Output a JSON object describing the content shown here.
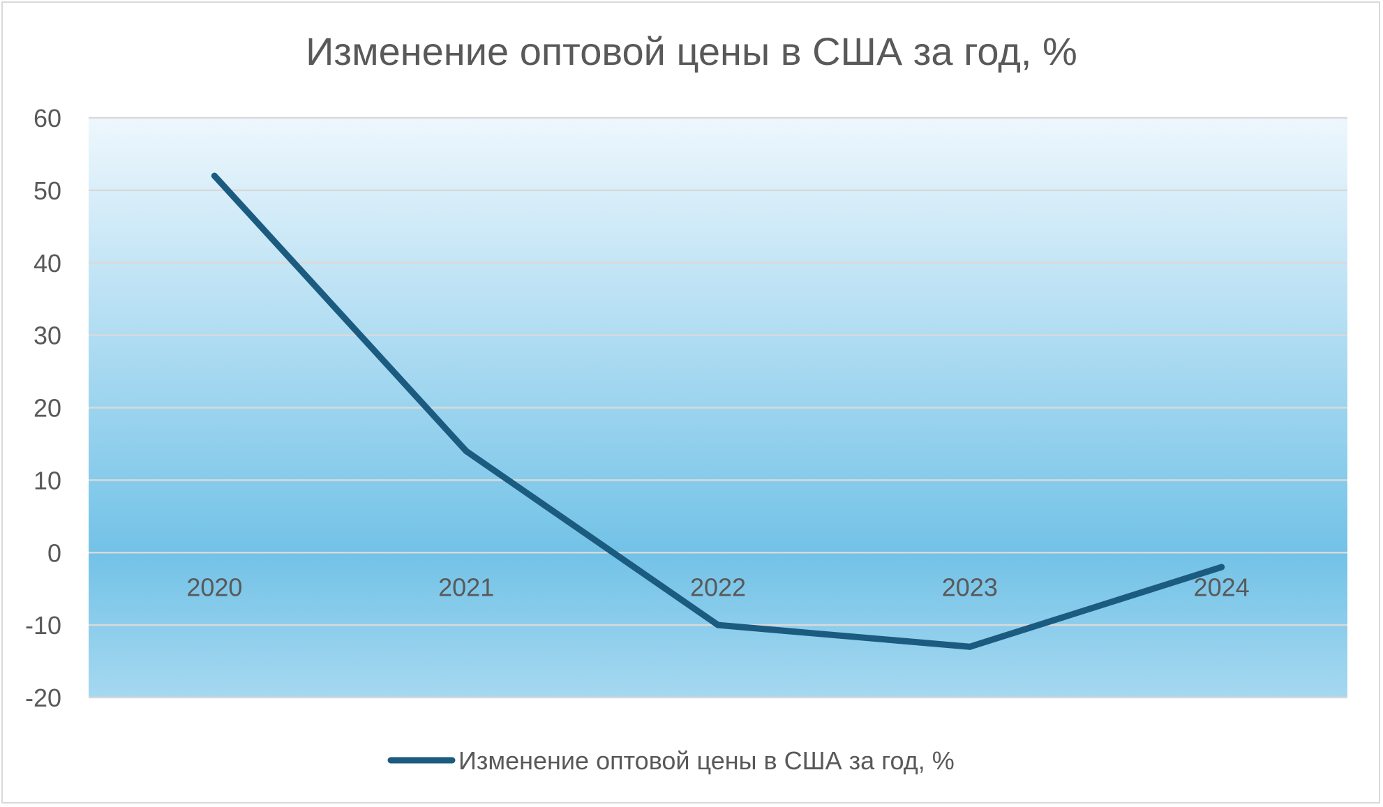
{
  "chart_data": {
    "type": "line",
    "title": "Изменение оптовой цены в США за год, %",
    "categories": [
      "2020",
      "2021",
      "2022",
      "2023",
      "2024"
    ],
    "series": [
      {
        "name": "Изменение оптовой цены в США за год, %",
        "values": [
          52,
          14,
          -10,
          -13,
          -2
        ]
      }
    ],
    "ylim": [
      -20,
      60
    ],
    "yticks": [
      "60",
      "50",
      "40",
      "30",
      "20",
      "10",
      "0",
      "-10",
      "-20"
    ],
    "xlabel": "",
    "ylabel": "",
    "grid": true,
    "legend": "bottom",
    "colors": {
      "line": "#1b5b80",
      "grid": "#d9d9d9",
      "plot_top": "#eef7fd",
      "plot_mid": "#72c2e7",
      "plot_bottom": "#a6d8f0"
    }
  }
}
